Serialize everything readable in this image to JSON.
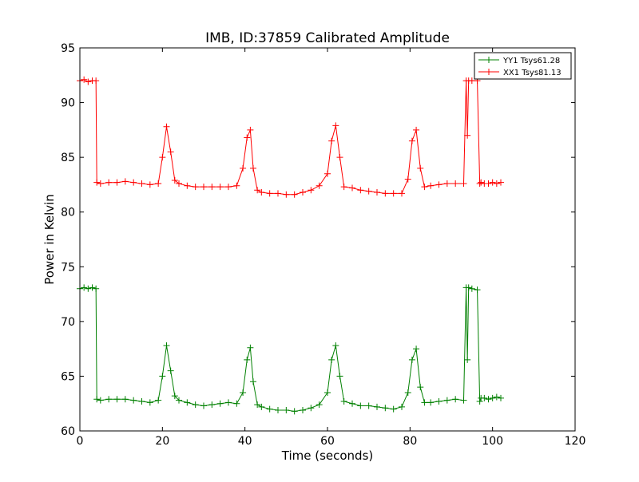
{
  "chart_data": {
    "type": "line",
    "title": "IMB, ID:37859 Calibrated Amplitude",
    "xlabel": "Time (seconds)",
    "ylabel": "Power in Kelvin",
    "xlim": [
      0,
      120
    ],
    "ylim": [
      60,
      95
    ],
    "xticks": [
      0,
      20,
      40,
      60,
      80,
      100,
      120
    ],
    "yticks": [
      60,
      65,
      70,
      75,
      80,
      85,
      90,
      95
    ],
    "grid": false,
    "legend_position": "top-right",
    "marker": "+",
    "series": [
      {
        "name": "YY1 Tsys61.28",
        "color": "#008000",
        "x": [
          0,
          1,
          2,
          3,
          3.9,
          4.1,
          5,
          7,
          9,
          11,
          13,
          15,
          17,
          19,
          20,
          21,
          22,
          23,
          24,
          26,
          28,
          30,
          32,
          34,
          36,
          38,
          39.5,
          40.5,
          41.3,
          42,
          43,
          44,
          46,
          48,
          50,
          52,
          54,
          56,
          58,
          60,
          61,
          62,
          63,
          64,
          66,
          68,
          70,
          72,
          74,
          76,
          78,
          79.5,
          80.5,
          81.5,
          82.5,
          83.5,
          85,
          87,
          89,
          91,
          93,
          93.6,
          93.9,
          94.2,
          95,
          96.3,
          96.9,
          97.2,
          98,
          99,
          100,
          101,
          102
        ],
        "y": [
          73.0,
          73.1,
          73.0,
          73.1,
          73.0,
          62.9,
          62.8,
          62.9,
          62.9,
          62.9,
          62.8,
          62.7,
          62.6,
          62.8,
          65.0,
          67.8,
          65.5,
          63.2,
          62.8,
          62.6,
          62.4,
          62.3,
          62.4,
          62.5,
          62.6,
          62.5,
          63.5,
          66.5,
          67.6,
          64.5,
          62.4,
          62.2,
          62.0,
          61.9,
          61.9,
          61.8,
          61.9,
          62.1,
          62.4,
          63.5,
          66.5,
          67.8,
          65.0,
          62.7,
          62.5,
          62.3,
          62.3,
          62.2,
          62.1,
          62.0,
          62.2,
          63.5,
          66.5,
          67.5,
          64.0,
          62.6,
          62.6,
          62.7,
          62.8,
          62.9,
          62.8,
          73.1,
          66.5,
          73.1,
          73.0,
          72.9,
          62.7,
          63.0,
          63.0,
          62.9,
          63.0,
          63.1,
          63.0
        ]
      },
      {
        "name": "XX1 Tsys81.13",
        "color": "#ff0000",
        "x": [
          0,
          1,
          2,
          3,
          3.9,
          4.1,
          5,
          7,
          9,
          11,
          13,
          15,
          17,
          19,
          20,
          21,
          22,
          23,
          24,
          26,
          28,
          30,
          32,
          34,
          36,
          38,
          39.5,
          40.5,
          41.3,
          42,
          43,
          44,
          46,
          48,
          50,
          52,
          54,
          56,
          58,
          60,
          61,
          62,
          63,
          64,
          66,
          68,
          70,
          72,
          74,
          76,
          78,
          79.5,
          80.5,
          81.5,
          82.5,
          83.5,
          85,
          87,
          89,
          91,
          93,
          93.6,
          93.9,
          94.2,
          95,
          96.3,
          96.9,
          97.2,
          98,
          99,
          100,
          101,
          102
        ],
        "y": [
          92.0,
          92.1,
          91.9,
          92.0,
          92.0,
          82.7,
          82.6,
          82.7,
          82.7,
          82.8,
          82.7,
          82.6,
          82.5,
          82.6,
          85.0,
          87.8,
          85.5,
          82.9,
          82.6,
          82.4,
          82.3,
          82.3,
          82.3,
          82.3,
          82.3,
          82.4,
          84.0,
          86.8,
          87.5,
          84.0,
          82.0,
          81.8,
          81.7,
          81.7,
          81.6,
          81.6,
          81.8,
          82.0,
          82.4,
          83.5,
          86.5,
          87.9,
          85.0,
          82.3,
          82.2,
          82.0,
          81.9,
          81.8,
          81.7,
          81.7,
          81.7,
          83.0,
          86.5,
          87.5,
          84.0,
          82.3,
          82.4,
          82.5,
          82.6,
          82.6,
          82.6,
          92.0,
          87.0,
          92.0,
          92.0,
          92.0,
          82.6,
          82.7,
          82.6,
          82.6,
          82.7,
          82.6,
          82.7
        ]
      }
    ]
  }
}
